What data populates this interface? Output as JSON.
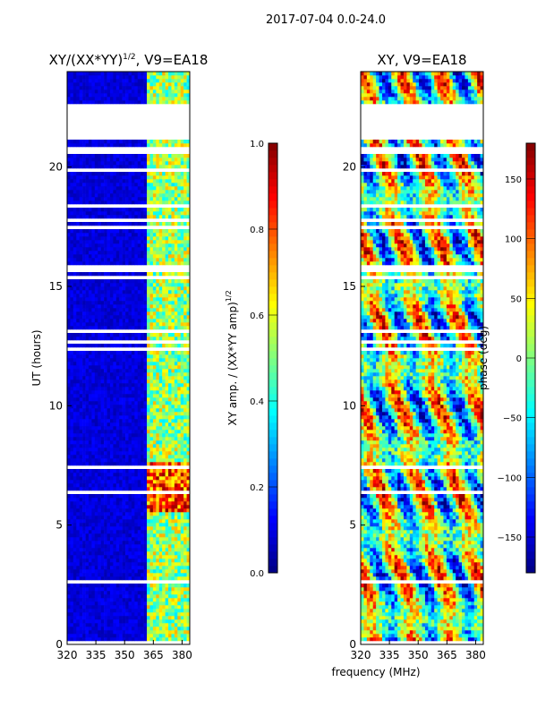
{
  "suptitle": "2017-07-04 0.0-24.0",
  "xlabel": "frequency (MHz)",
  "chart_data": [
    {
      "type": "heatmap",
      "title": "XY/(XX*YY)",
      "title_exponent": "1/2",
      "title_suffix": ", V9=EA18",
      "ylabel": "UT (hours)",
      "xlim": [
        320,
        384
      ],
      "ylim": [
        0,
        24
      ],
      "xticks": [
        "320",
        "335",
        "350",
        "365",
        "380"
      ],
      "yticks": [
        "0",
        "5",
        "10",
        "15",
        "20"
      ],
      "bright_band_mhz": [
        361,
        384
      ],
      "flagged_block_hours": [
        22.6,
        21.1
      ],
      "colorbar": {
        "label": "XY amp. / (XX*YY amp)",
        "label_exponent": "1/2",
        "range": [
          0.0,
          1.0
        ],
        "ticks": [
          "0.0",
          "0.2",
          "0.4",
          "0.6",
          "0.8",
          "1.0"
        ]
      }
    },
    {
      "type": "heatmap",
      "title": "XY, V9=EA18",
      "xlim": [
        320,
        384
      ],
      "ylim": [
        0,
        24
      ],
      "xticks": [
        "320",
        "335",
        "350",
        "365",
        "380"
      ],
      "yticks": [
        "0",
        "5",
        "10",
        "15",
        "20"
      ],
      "flagged_block_hours": [
        22.6,
        21.1
      ],
      "colorbar": {
        "label": "phase (deg)",
        "range": [
          -180,
          180
        ],
        "ticks": [
          "−150",
          "−100",
          "−50",
          "0",
          "50",
          "100",
          "150"
        ]
      }
    }
  ],
  "colors": {
    "jet": [
      "#00007f",
      "#0000ff",
      "#007fff",
      "#00ffff",
      "#7fff7f",
      "#ffff00",
      "#ff7f00",
      "#ff0000",
      "#7f0000"
    ]
  }
}
